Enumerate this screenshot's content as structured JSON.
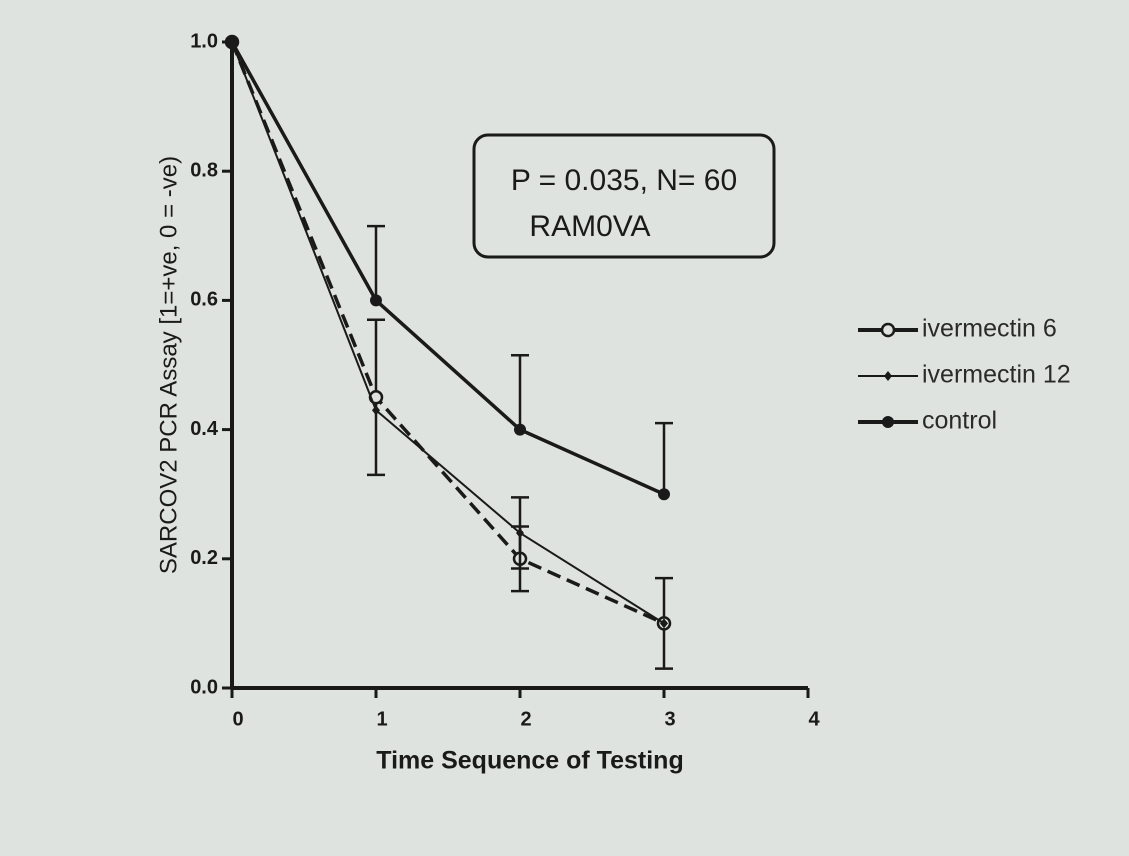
{
  "chart_data": {
    "type": "line",
    "annotation": [
      "P = 0.035, N= 60",
      "RAM0VA"
    ],
    "x_label": "Time Sequence of Testing",
    "y_label": "SARCOV2 PCR Assay [1=+ve, 0 = -ve)",
    "x": [
      0,
      1,
      2,
      3
    ],
    "xlim": [
      0,
      4
    ],
    "xticks": [
      0,
      1,
      2,
      3,
      4
    ],
    "ylim": [
      0,
      1
    ],
    "yticks": [
      {
        "value": 0,
        "label": "0.0"
      },
      0.2,
      0.4,
      0.6,
      0.8,
      {
        "value": 1,
        "label": "1.0"
      }
    ],
    "grid": false,
    "legend": "right",
    "series": [
      {
        "name": "ivermectin 6",
        "color": "#1a1a1a",
        "dash": true,
        "marker": "open-circle",
        "values": [
          1.0,
          0.45,
          0.2,
          0.1
        ],
        "errors": [
          null,
          0.12,
          0.05,
          0.07
        ]
      },
      {
        "name": "ivermectin 12",
        "color": "#1a1a1a",
        "dash": false,
        "marker": "diamond",
        "values": [
          1.0,
          0.43,
          0.24,
          0.1
        ],
        "errors": [
          null,
          null,
          0.055,
          null
        ]
      },
      {
        "name": "control",
        "color": "#1a1a1a",
        "dash": false,
        "marker": "filled-circle",
        "values": [
          1.0,
          0.6,
          0.4,
          0.3
        ],
        "errors": [
          null,
          0.115,
          0.115,
          0.11
        ]
      }
    ]
  }
}
